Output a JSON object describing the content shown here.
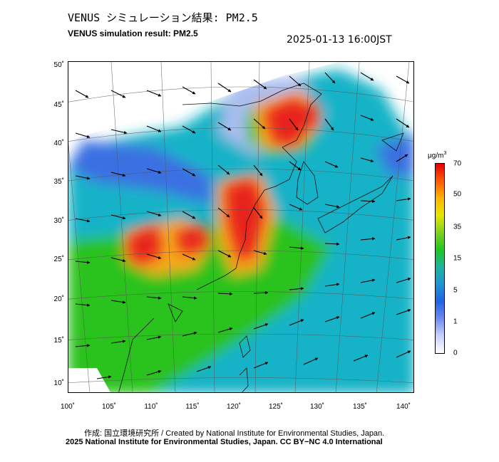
{
  "header": {
    "title_jp": "VENUS シミュレーション結果: PM2.5",
    "title_en": "VENUS simulation result: PM2.5",
    "timestamp": "2025-01-13 16:00JST"
  },
  "map": {
    "lat_labels": [
      "50˚",
      "45˚",
      "40˚",
      "35˚",
      "30˚",
      "25˚",
      "20˚",
      "15˚",
      "10˚"
    ],
    "lon_labels": [
      "100˚",
      "105˚",
      "110˚",
      "115˚",
      "120˚",
      "125˚",
      "130˚",
      "135˚",
      "140˚"
    ],
    "lat_range": [
      10,
      50
    ],
    "lon_range": [
      100,
      140
    ],
    "variable": "PM2.5",
    "colors": {
      "high": "#e8221a",
      "mid_high": "#f6a81e",
      "mid": "#2cc21e",
      "low": "#19b3c8",
      "very_low": "#3b6fe2",
      "minimal": "#a9bdf0"
    }
  },
  "colorbar": {
    "unit_base": "μg/m",
    "unit_exp": "3",
    "ticks": [
      "70",
      "50",
      "35",
      "15",
      "5",
      "1",
      "0"
    ],
    "colors": [
      "#e60000",
      "#ff5a00",
      "#ffb400",
      "#e6e600",
      "#7fd21e",
      "#1ec81e",
      "#1eb4a0",
      "#1e96d2",
      "#1e64e6",
      "#6e8cf0",
      "#c8d2fa",
      "#ffffff"
    ]
  },
  "footer": {
    "credit_line": "作成: 国立環境研究所 / Created by National Institute for Environmental Studies, Japan.",
    "license_line": "2025 National Institute for Environmental Studies, Japan. CC BY−NC 4.0 International"
  }
}
